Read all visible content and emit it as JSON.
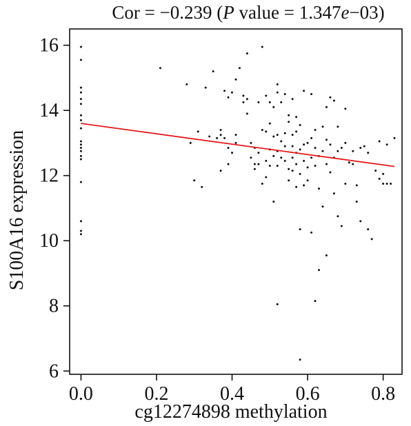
{
  "chart_data": {
    "type": "scatter",
    "title": {
      "prefix": "Cor = −0.239 (",
      "p_symbol": "P",
      "middle": " value = 1.347",
      "e_symbol": "e",
      "suffix": "−03)"
    },
    "xlabel": "cg12274898 methylation",
    "ylabel": "S100A16 expression",
    "xlim": [
      -0.03,
      0.85
    ],
    "ylim": [
      5.9,
      16.5
    ],
    "xticks": [
      0.0,
      0.2,
      0.4,
      0.6,
      0.8
    ],
    "xtick_labels": [
      "0.0",
      "0.2",
      "0.4",
      "0.6",
      "0.8"
    ],
    "yticks": [
      6,
      8,
      10,
      12,
      14,
      16
    ],
    "ytick_labels": [
      "6",
      "8",
      "10",
      "12",
      "14",
      "16"
    ],
    "grid": false,
    "legend": "none",
    "series": [
      {
        "points": [
          [
            0.0,
            15.95
          ],
          [
            0.0,
            15.55
          ],
          [
            0.0,
            14.7
          ],
          [
            0.0,
            14.55
          ],
          [
            0.0,
            14.35
          ],
          [
            0.0,
            14.2
          ],
          [
            0.0,
            13.85
          ],
          [
            0.0,
            13.7
          ],
          [
            0.0,
            13.45
          ],
          [
            0.0,
            13.05
          ],
          [
            0.0,
            12.95
          ],
          [
            0.0,
            12.85
          ],
          [
            0.0,
            12.75
          ],
          [
            0.0,
            12.6
          ],
          [
            0.0,
            12.5
          ],
          [
            0.0,
            11.8
          ],
          [
            0.0,
            10.6
          ],
          [
            0.0,
            10.3
          ],
          [
            0.0,
            10.2
          ],
          [
            0.21,
            15.3
          ],
          [
            0.28,
            14.8
          ],
          [
            0.29,
            13.0
          ],
          [
            0.3,
            11.85
          ],
          [
            0.31,
            13.35
          ],
          [
            0.32,
            11.65
          ],
          [
            0.33,
            14.7
          ],
          [
            0.34,
            13.2
          ],
          [
            0.35,
            15.2
          ],
          [
            0.36,
            13.15
          ],
          [
            0.37,
            13.4
          ],
          [
            0.37,
            13.25
          ],
          [
            0.37,
            12.15
          ],
          [
            0.38,
            14.6
          ],
          [
            0.38,
            13.15
          ],
          [
            0.39,
            14.4
          ],
          [
            0.39,
            12.85
          ],
          [
            0.39,
            12.35
          ],
          [
            0.4,
            14.55
          ],
          [
            0.4,
            12.7
          ],
          [
            0.41,
            14.95
          ],
          [
            0.41,
            13.0
          ],
          [
            0.41,
            13.25
          ],
          [
            0.42,
            15.3
          ],
          [
            0.43,
            14.45
          ],
          [
            0.43,
            14.25
          ],
          [
            0.44,
            13.9
          ],
          [
            0.44,
            14.35
          ],
          [
            0.44,
            15.75
          ],
          [
            0.45,
            13.0
          ],
          [
            0.45,
            12.55
          ],
          [
            0.46,
            12.85
          ],
          [
            0.46,
            12.2
          ],
          [
            0.46,
            12.35
          ],
          [
            0.47,
            14.25
          ],
          [
            0.47,
            12.7
          ],
          [
            0.47,
            12.35
          ],
          [
            0.48,
            15.95
          ],
          [
            0.48,
            11.75
          ],
          [
            0.48,
            13.4
          ],
          [
            0.49,
            14.45
          ],
          [
            0.49,
            13.35
          ],
          [
            0.49,
            11.95
          ],
          [
            0.49,
            12.45
          ],
          [
            0.5,
            14.25
          ],
          [
            0.5,
            13.6
          ],
          [
            0.5,
            12.8
          ],
          [
            0.5,
            12.3
          ],
          [
            0.51,
            14.1
          ],
          [
            0.51,
            13.2
          ],
          [
            0.51,
            12.6
          ],
          [
            0.51,
            11.2
          ],
          [
            0.52,
            14.8
          ],
          [
            0.52,
            14.55
          ],
          [
            0.52,
            13.25
          ],
          [
            0.52,
            12.75
          ],
          [
            0.52,
            12.3
          ],
          [
            0.52,
            8.05
          ],
          [
            0.53,
            14.25
          ],
          [
            0.53,
            13.05
          ],
          [
            0.53,
            12.55
          ],
          [
            0.54,
            14.5
          ],
          [
            0.54,
            13.3
          ],
          [
            0.54,
            12.9
          ],
          [
            0.54,
            12.45
          ],
          [
            0.55,
            13.85
          ],
          [
            0.55,
            13.65
          ],
          [
            0.55,
            12.2
          ],
          [
            0.55,
            11.85
          ],
          [
            0.56,
            14.35
          ],
          [
            0.56,
            13.25
          ],
          [
            0.56,
            12.9
          ],
          [
            0.56,
            12.55
          ],
          [
            0.56,
            12.15
          ],
          [
            0.57,
            13.8
          ],
          [
            0.57,
            13.35
          ],
          [
            0.57,
            12.7
          ],
          [
            0.57,
            12.35
          ],
          [
            0.57,
            11.65
          ],
          [
            0.58,
            13.55
          ],
          [
            0.58,
            12.8
          ],
          [
            0.58,
            12.05
          ],
          [
            0.58,
            10.35
          ],
          [
            0.58,
            6.35
          ],
          [
            0.59,
            14.6
          ],
          [
            0.59,
            12.95
          ],
          [
            0.59,
            12.45
          ],
          [
            0.59,
            11.7
          ],
          [
            0.6,
            13.0
          ],
          [
            0.6,
            12.25
          ],
          [
            0.6,
            11.85
          ],
          [
            0.61,
            14.5
          ],
          [
            0.61,
            13.15
          ],
          [
            0.61,
            12.55
          ],
          [
            0.61,
            10.25
          ],
          [
            0.62,
            13.4
          ],
          [
            0.62,
            12.85
          ],
          [
            0.62,
            12.3
          ],
          [
            0.62,
            8.15
          ],
          [
            0.63,
            12.6
          ],
          [
            0.63,
            11.6
          ],
          [
            0.63,
            9.1
          ],
          [
            0.64,
            13.5
          ],
          [
            0.64,
            12.75
          ],
          [
            0.64,
            11.05
          ],
          [
            0.65,
            14.1
          ],
          [
            0.65,
            13.1
          ],
          [
            0.65,
            12.35
          ],
          [
            0.65,
            9.55
          ],
          [
            0.66,
            14.4
          ],
          [
            0.66,
            12.95
          ],
          [
            0.66,
            12.1
          ],
          [
            0.67,
            14.3
          ],
          [
            0.67,
            12.55
          ],
          [
            0.67,
            11.45
          ],
          [
            0.68,
            13.5
          ],
          [
            0.68,
            12.75
          ],
          [
            0.68,
            10.75
          ],
          [
            0.69,
            12.85
          ],
          [
            0.69,
            10.45
          ],
          [
            0.7,
            14.05
          ],
          [
            0.7,
            13.0
          ],
          [
            0.7,
            11.75
          ],
          [
            0.71,
            12.4
          ],
          [
            0.72,
            12.35
          ],
          [
            0.72,
            12.75
          ],
          [
            0.73,
            11.7
          ],
          [
            0.73,
            11.2
          ],
          [
            0.74,
            12.85
          ],
          [
            0.74,
            10.6
          ],
          [
            0.75,
            12.9
          ],
          [
            0.76,
            12.7
          ],
          [
            0.76,
            10.35
          ],
          [
            0.77,
            10.05
          ],
          [
            0.78,
            12.15
          ],
          [
            0.79,
            13.05
          ],
          [
            0.79,
            11.9
          ],
          [
            0.8,
            12.05
          ],
          [
            0.8,
            11.75
          ],
          [
            0.81,
            12.95
          ],
          [
            0.81,
            11.75
          ],
          [
            0.82,
            11.75
          ],
          [
            0.83,
            13.15
          ]
        ]
      }
    ],
    "regression_line": {
      "color": "#e41a1c",
      "x": [
        0.0,
        0.83
      ],
      "y": [
        13.6,
        12.28
      ]
    },
    "point_color": "#111111"
  }
}
